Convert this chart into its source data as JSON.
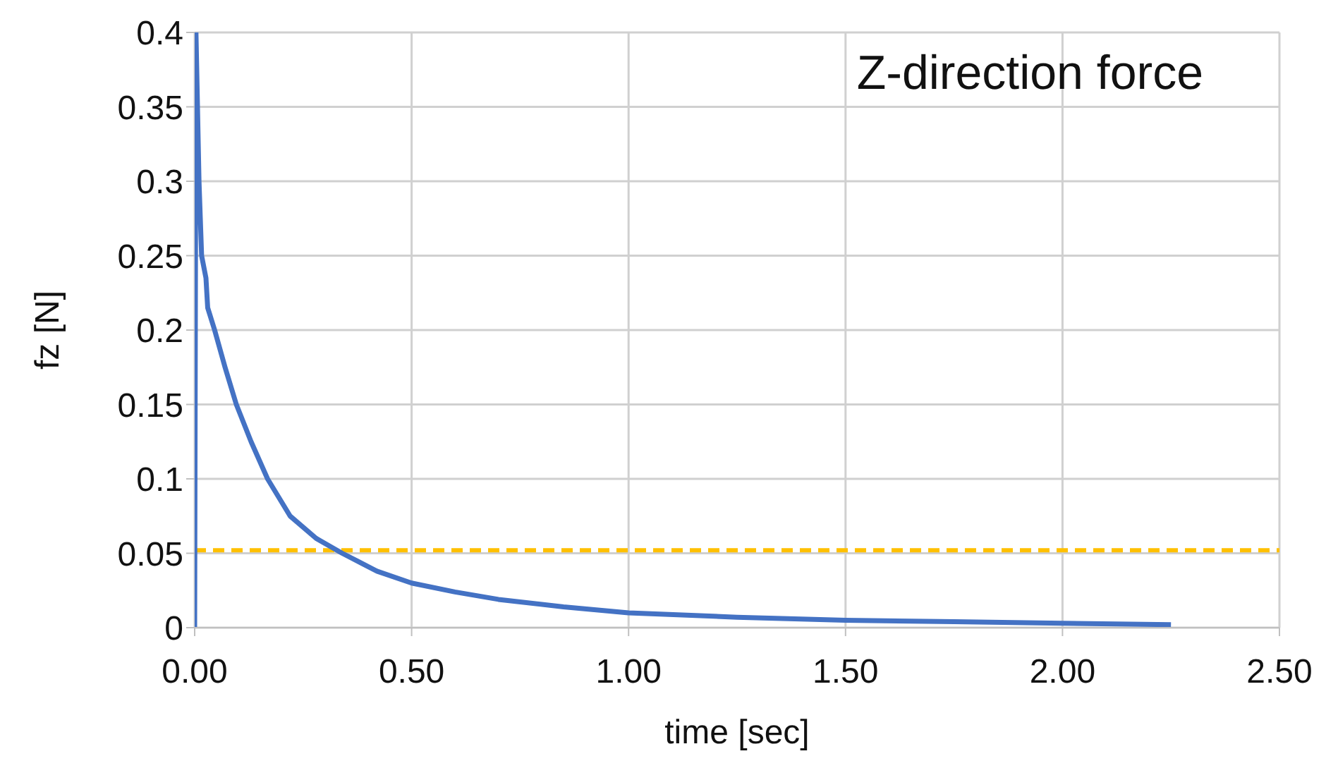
{
  "chart_data": {
    "type": "line",
    "title": "Z-direction force",
    "xlabel": "time [sec]",
    "ylabel": "fz  [N]",
    "x": [
      0,
      0.003,
      0.01,
      0.016,
      0.026,
      0.03,
      0.046,
      0.07,
      0.096,
      0.13,
      0.168,
      0.22,
      0.28,
      0.34,
      0.42,
      0.5,
      0.6,
      0.7,
      0.85,
      1.0,
      1.25,
      1.5,
      1.75,
      2.0,
      2.25
    ],
    "series": [
      {
        "color": "#4472c4",
        "values": [
          0,
          0.4,
          0.3,
          0.25,
          0.235,
          0.215,
          0.2,
          0.175,
          0.15,
          0.125,
          0.1,
          0.075,
          0.06,
          0.05,
          0.038,
          0.03,
          0.024,
          0.019,
          0.014,
          0.01,
          0.007,
          0.005,
          0.004,
          0.003,
          0.002
        ]
      }
    ],
    "xlim": [
      0,
      2.5
    ],
    "xticks": [
      {
        "value": 0,
        "label": "0.00"
      },
      {
        "value": 0.5,
        "label": "0.50"
      },
      {
        "value": 1,
        "label": "1.00"
      },
      {
        "value": 1.5,
        "label": "1.50"
      },
      {
        "value": 2,
        "label": "2.00"
      },
      {
        "value": 2.5,
        "label": "2.50"
      }
    ],
    "ylim": [
      0,
      0.4
    ],
    "yticks": [
      0,
      0.05,
      0.1,
      0.15,
      0.2,
      0.25,
      0.3,
      0.35,
      0.4
    ],
    "grid": true,
    "legend": false,
    "marker": "none",
    "line_style": "solid",
    "ref_lines": [
      {
        "axis": "y",
        "value": 0.052,
        "color": "#ffc000",
        "line_style": "dashed"
      }
    ]
  }
}
